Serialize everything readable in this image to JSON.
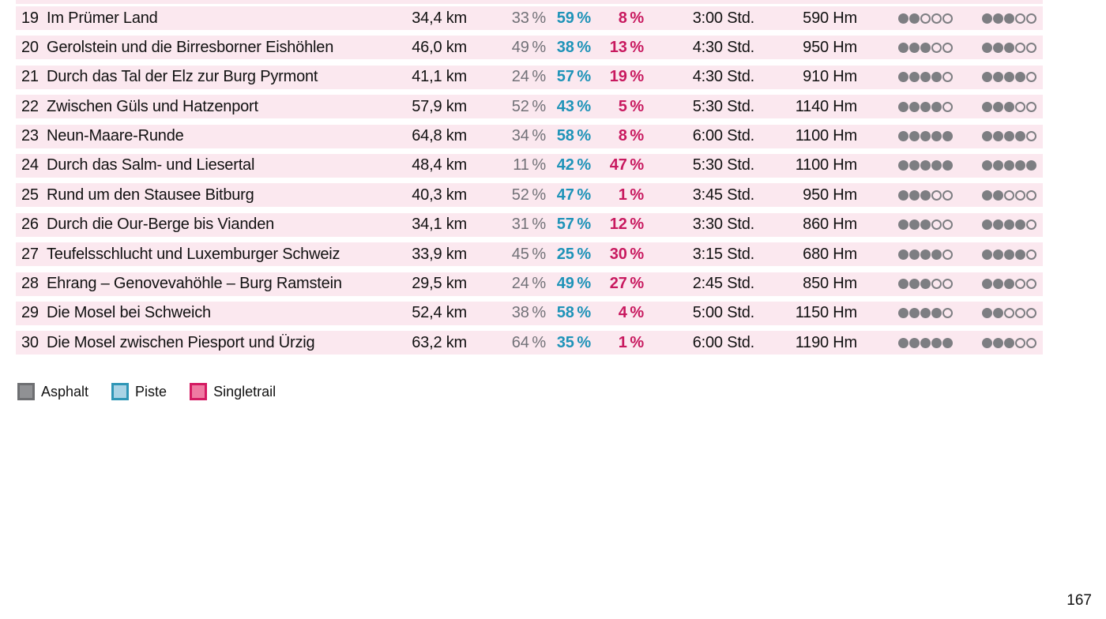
{
  "table": {
    "rating_max": 5,
    "rows": [
      {
        "num": "19",
        "name": "Im Prümer Land",
        "distance": "34,4 km",
        "asphalt": "33 %",
        "piste": "59 %",
        "singletrail": "8 %",
        "time": "3:00 Std.",
        "elevation": "590 Hm",
        "rating1": 2,
        "rating2": 3
      },
      {
        "num": "20",
        "name": "Gerolstein und die Birresborner Eishöhlen",
        "distance": "46,0 km",
        "asphalt": "49 %",
        "piste": "38 %",
        "singletrail": "13 %",
        "time": "4:30 Std.",
        "elevation": "950 Hm",
        "rating1": 3,
        "rating2": 3
      },
      {
        "num": "21",
        "name": "Durch das Tal der Elz zur Burg Pyrmont",
        "distance": "41,1 km",
        "asphalt": "24 %",
        "piste": "57 %",
        "singletrail": "19 %",
        "time": "4:30 Std.",
        "elevation": "910 Hm",
        "rating1": 4,
        "rating2": 4
      },
      {
        "num": "22",
        "name": "Zwischen Güls und Hatzenport",
        "distance": "57,9 km",
        "asphalt": "52 %",
        "piste": "43 %",
        "singletrail": "5 %",
        "time": "5:30 Std.",
        "elevation": "1140 Hm",
        "rating1": 4,
        "rating2": 3
      },
      {
        "num": "23",
        "name": "Neun-Maare-Runde",
        "distance": "64,8 km",
        "asphalt": "34 %",
        "piste": "58 %",
        "singletrail": "8 %",
        "time": "6:00 Std.",
        "elevation": "1100 Hm",
        "rating1": 5,
        "rating2": 4
      },
      {
        "num": "24",
        "name": "Durch das Salm- und Liesertal",
        "distance": "48,4 km",
        "asphalt": "11 %",
        "piste": "42 %",
        "singletrail": "47 %",
        "time": "5:30 Std.",
        "elevation": "1100 Hm",
        "rating1": 5,
        "rating2": 5
      },
      {
        "num": "25",
        "name": "Rund um den Stausee Bitburg",
        "distance": "40,3 km",
        "asphalt": "52 %",
        "piste": "47 %",
        "singletrail": "1 %",
        "time": "3:45 Std.",
        "elevation": "950 Hm",
        "rating1": 3,
        "rating2": 2
      },
      {
        "num": "26",
        "name": "Durch die Our-Berge bis Vianden",
        "distance": "34,1 km",
        "asphalt": "31 %",
        "piste": "57 %",
        "singletrail": "12 %",
        "time": "3:30 Std.",
        "elevation": "860 Hm",
        "rating1": 3,
        "rating2": 4
      },
      {
        "num": "27",
        "name": "Teufelsschlucht und Luxemburger Schweiz",
        "distance": "33,9 km",
        "asphalt": "45 %",
        "piste": "25 %",
        "singletrail": "30 %",
        "time": "3:15 Std.",
        "elevation": "680 Hm",
        "rating1": 4,
        "rating2": 4
      },
      {
        "num": "28",
        "name": "Ehrang – Genovevahöhle – Burg Ramstein",
        "distance": "29,5 km",
        "asphalt": "24 %",
        "piste": "49 %",
        "singletrail": "27 %",
        "time": "2:45 Std.",
        "elevation": "850 Hm",
        "rating1": 3,
        "rating2": 3
      },
      {
        "num": "29",
        "name": "Die Mosel bei Schweich",
        "distance": "52,4 km",
        "asphalt": "38 %",
        "piste": "58 %",
        "singletrail": "4 %",
        "time": "5:00 Std.",
        "elevation": "1150 Hm",
        "rating1": 4,
        "rating2": 2
      },
      {
        "num": "30",
        "name": "Die Mosel zwischen Piesport und Ürzig",
        "distance": "63,2 km",
        "asphalt": "64 %",
        "piste": "35 %",
        "singletrail": "1 %",
        "time": "6:00 Std.",
        "elevation": "1190 Hm",
        "rating1": 5,
        "rating2": 3
      }
    ]
  },
  "legend": {
    "items": [
      {
        "label": "Asphalt"
      },
      {
        "label": "Piste"
      },
      {
        "label": "Singletrail"
      }
    ]
  },
  "page_number": "167",
  "colors": {
    "row_background": "#fbe8ef",
    "text_black": "#111111",
    "asphalt_gray": "#717177",
    "piste_blue": "#1e93b8",
    "singletrail_pink": "#c8195f",
    "dot_fill": "#7d7e82",
    "legend_asphalt_fill": "#909194",
    "legend_asphalt_border": "#6e6f72",
    "legend_piste_fill": "#a9d3e5",
    "legend_piste_border": "#2f96b6",
    "legend_singletrail_fill": "#ef7aa2",
    "legend_singletrail_border": "#d41a62"
  }
}
